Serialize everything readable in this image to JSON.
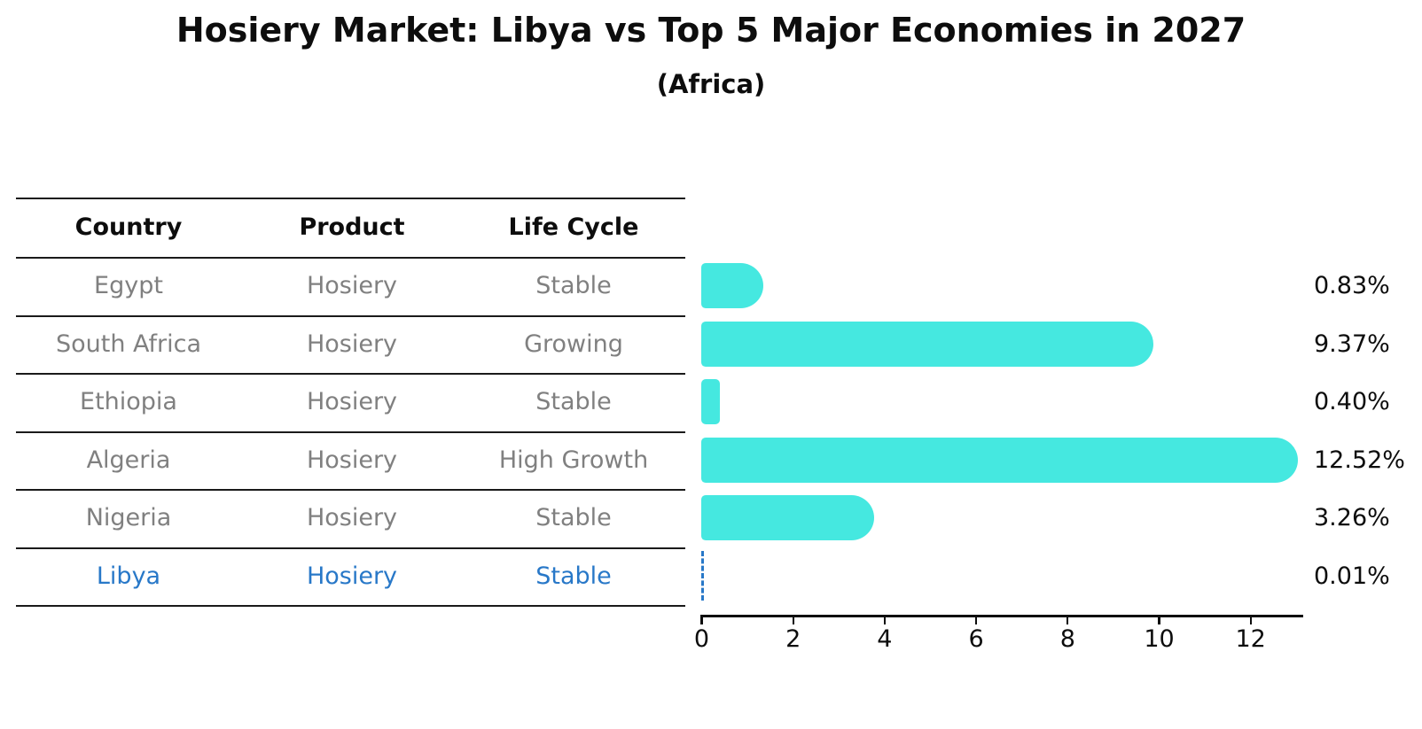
{
  "title": "Hosiery Market: Libya vs Top 5 Major Economies in 2027",
  "subtitle": "(Africa)",
  "table": {
    "headers": [
      "Country",
      "Product",
      "Life Cycle"
    ],
    "rows": [
      {
        "country": "Egypt",
        "product": "Hosiery",
        "life_cycle": "Stable",
        "highlight": false
      },
      {
        "country": "South Africa",
        "product": "Hosiery",
        "life_cycle": "Growing",
        "highlight": false
      },
      {
        "country": "Ethiopia",
        "product": "Hosiery",
        "life_cycle": "Stable",
        "highlight": false
      },
      {
        "country": "Algeria",
        "product": "Hosiery",
        "life_cycle": "High Growth",
        "highlight": false
      },
      {
        "country": "Nigeria",
        "product": "Hosiery",
        "life_cycle": "Stable",
        "highlight": false
      },
      {
        "country": "Libya",
        "product": "Hosiery",
        "life_cycle": "Stable",
        "highlight": true
      }
    ]
  },
  "chart_data": {
    "type": "bar",
    "orientation": "horizontal",
    "title": "Hosiery Market: Libya vs Top 5 Major Economies in 2027",
    "subtitle": "(Africa)",
    "categories": [
      "Egypt",
      "South Africa",
      "Ethiopia",
      "Algeria",
      "Nigeria",
      "Libya"
    ],
    "values": [
      0.83,
      9.37,
      0.4,
      12.52,
      3.26,
      0.01
    ],
    "value_labels": [
      "0.83%",
      "9.37%",
      "0.40%",
      "12.52%",
      "3.26%",
      "0.01%"
    ],
    "xticks": [
      0,
      2,
      4,
      6,
      8,
      10,
      12
    ],
    "xlim": [
      0,
      13.15
    ],
    "grid": false,
    "legend": false,
    "bar_color": "#45e8e0",
    "highlight_color": "#2878c8",
    "highlighted_category": "Libya"
  }
}
